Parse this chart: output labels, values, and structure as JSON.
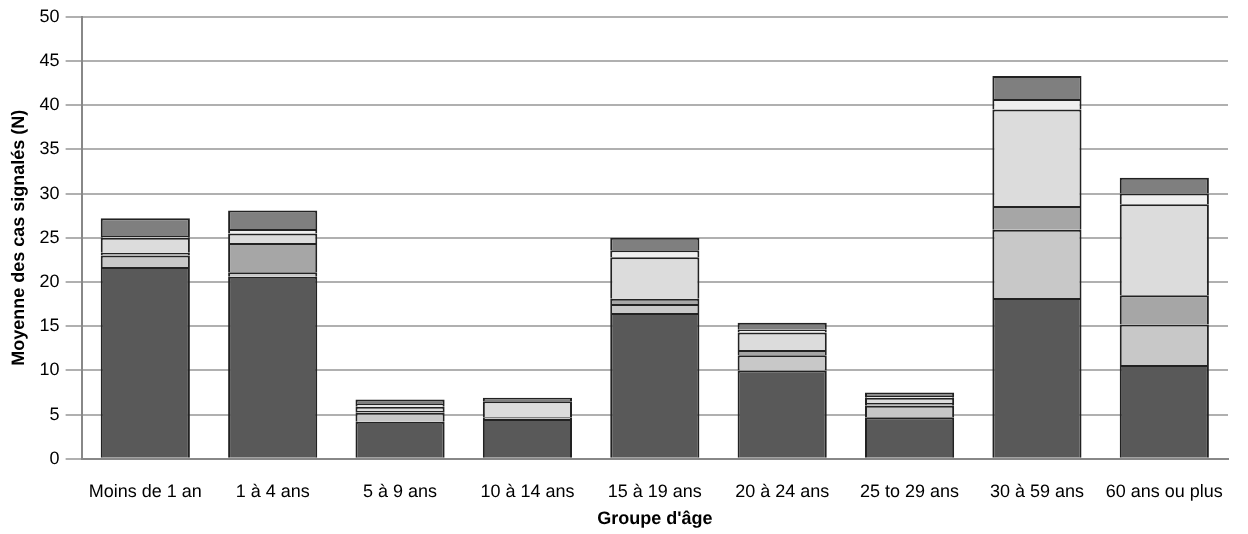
{
  "chart_data": {
    "type": "bar",
    "stacked": true,
    "xlabel": "Groupe d'âge",
    "ylabel": "Moyenne des cas signalés (N)",
    "categories": [
      "Moins de 1 an",
      "1 à 4 ans",
      "5 à 9 ans",
      "10 à 14 ans",
      "15 à 19 ans",
      "20 à 24 ans",
      "25 to 29 ans",
      "30 à 59 ans",
      "60 ans ou plus"
    ],
    "series": [
      {
        "color": "#595959",
        "values": [
          21.7,
          20.6,
          4.2,
          4.5,
          16.5,
          10.0,
          4.7,
          18.2,
          10.6
        ]
      },
      {
        "color": "#c8c8c8",
        "values": [
          1.3,
          0.5,
          1.0,
          0.2,
          1.0,
          1.7,
          1.3,
          7.7,
          4.6
        ]
      },
      {
        "color": "#a6a6a6",
        "values": [
          0.3,
          3.3,
          0.2,
          0,
          0.6,
          0.6,
          0.3,
          2.7,
          3.3
        ]
      },
      {
        "color": "#dcdcdc",
        "values": [
          1.7,
          1.1,
          0.5,
          1.8,
          4.7,
          2.0,
          0.6,
          10.9,
          10.3
        ]
      },
      {
        "color": "#efefef",
        "values": [
          0.2,
          0.5,
          0.3,
          0,
          0.8,
          0.3,
          0.2,
          1.2,
          1.2
        ]
      },
      {
        "color": "#7f7f7f",
        "values": [
          2.0,
          2.1,
          0.5,
          0.4,
          1.4,
          0.8,
          0.4,
          2.6,
          1.8
        ]
      }
    ],
    "ylim": [
      0,
      50
    ],
    "yticks": [
      0,
      5,
      10,
      15,
      20,
      25,
      30,
      35,
      40,
      45,
      50
    ],
    "grid": "y",
    "legend": false
  }
}
